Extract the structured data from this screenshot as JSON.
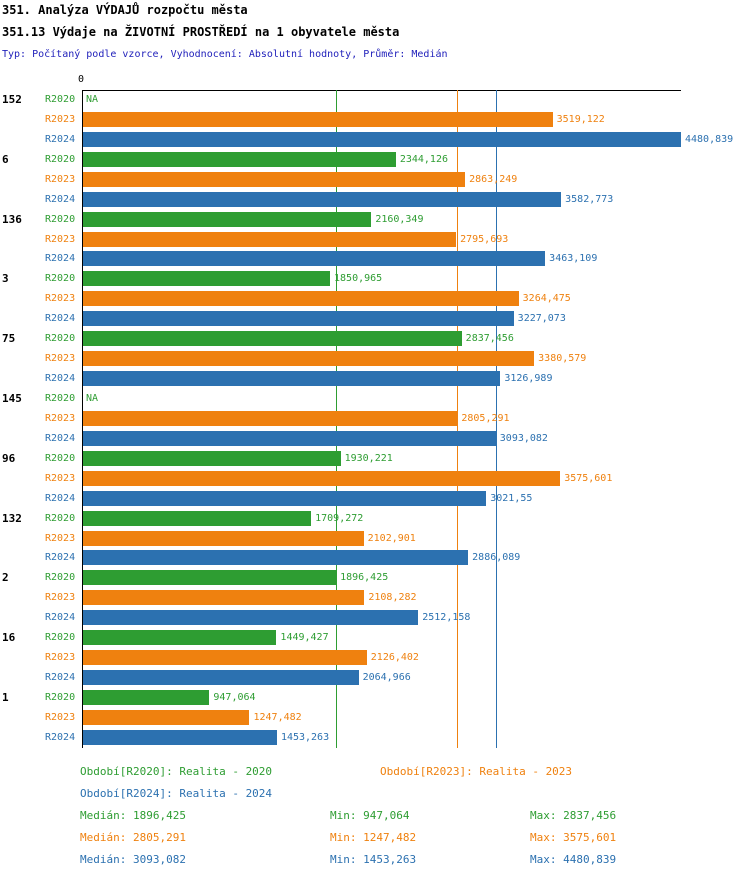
{
  "header": {
    "title": "351. Analýza VÝDAJŮ rozpočtu města",
    "subtitle": "351.13 Výdaje na ŽIVOTNÍ PROSTŘEDÍ na 1 obyvatele města",
    "meta": "Typ: Počítaný podle vzorce, Vyhodnocení: Absolutní hodnoty, Průměr: Medián"
  },
  "chart_data": {
    "type": "bar",
    "orientation": "horizontal",
    "title": "351.13 Výdaje na ŽIVOTNÍ PROSTŘEDÍ na 1 obyvatele města",
    "axis_zero_label": "0",
    "xlim": [
      0,
      4480.839
    ],
    "grid": "median-lines-per-series",
    "categories": [
      "152",
      "6",
      "136",
      "3",
      "75",
      "145",
      "96",
      "132",
      "2",
      "16",
      "1"
    ],
    "series": [
      {
        "name": "R2020",
        "color": "#2e9d32",
        "median": 1896.425,
        "values": [
          null,
          2344.126,
          2160.349,
          1850.965,
          2837.456,
          null,
          1930.221,
          1709.272,
          1896.425,
          1449.427,
          947.064
        ],
        "labels": [
          "NA",
          "2344,126",
          "2160,349",
          "1850,965",
          "2837,456",
          "NA",
          "1930,221",
          "1709,272",
          "1896,425",
          "1449,427",
          "947,064"
        ]
      },
      {
        "name": "R2023",
        "color": "#ef810f",
        "median": 2805.291,
        "values": [
          3519.122,
          2863.249,
          2795.693,
          3264.475,
          3380.579,
          2805.291,
          3575.601,
          2102.901,
          2108.282,
          2126.402,
          1247.482
        ],
        "labels": [
          "3519,122",
          "2863,249",
          "2795,693",
          "3264,475",
          "3380,579",
          "2805,291",
          "3575,601",
          "2102,901",
          "2108,282",
          "2126,402",
          "1247,482"
        ]
      },
      {
        "name": "R2024",
        "color": "#2c71b0",
        "median": 3093.082,
        "values": [
          4480.839,
          3582.773,
          3463.109,
          3227.073,
          3126.989,
          3093.082,
          3021.55,
          2886.089,
          2512.158,
          2064.966,
          1453.263
        ],
        "labels": [
          "4480,839",
          "3582,773",
          "3463,109",
          "3227,073",
          "3126,989",
          "3093,082",
          "3021,55",
          "2886,089",
          "2512,158",
          "2064,966",
          "1453,263"
        ]
      }
    ]
  },
  "legend": {
    "items": [
      {
        "text": "Období[R2020]: Realita - 2020",
        "series": 0,
        "row": 0,
        "col": 0
      },
      {
        "text": "Období[R2023]: Realita - 2023",
        "series": 1,
        "row": 0,
        "col": 1
      },
      {
        "text": "Období[R2024]: Realita - 2024",
        "series": 2,
        "row": 1,
        "col": 0
      }
    ]
  },
  "stats": {
    "rows": [
      {
        "series": 0,
        "median": "Medián: 1896,425",
        "min": "Min: 947,064",
        "max": "Max: 2837,456"
      },
      {
        "series": 1,
        "median": "Medián: 2805,291",
        "min": "Min: 1247,482",
        "max": "Max: 3575,601"
      },
      {
        "series": 2,
        "median": "Medián: 3093,082",
        "min": "Min: 1453,263",
        "max": "Max: 4480,839"
      }
    ]
  }
}
